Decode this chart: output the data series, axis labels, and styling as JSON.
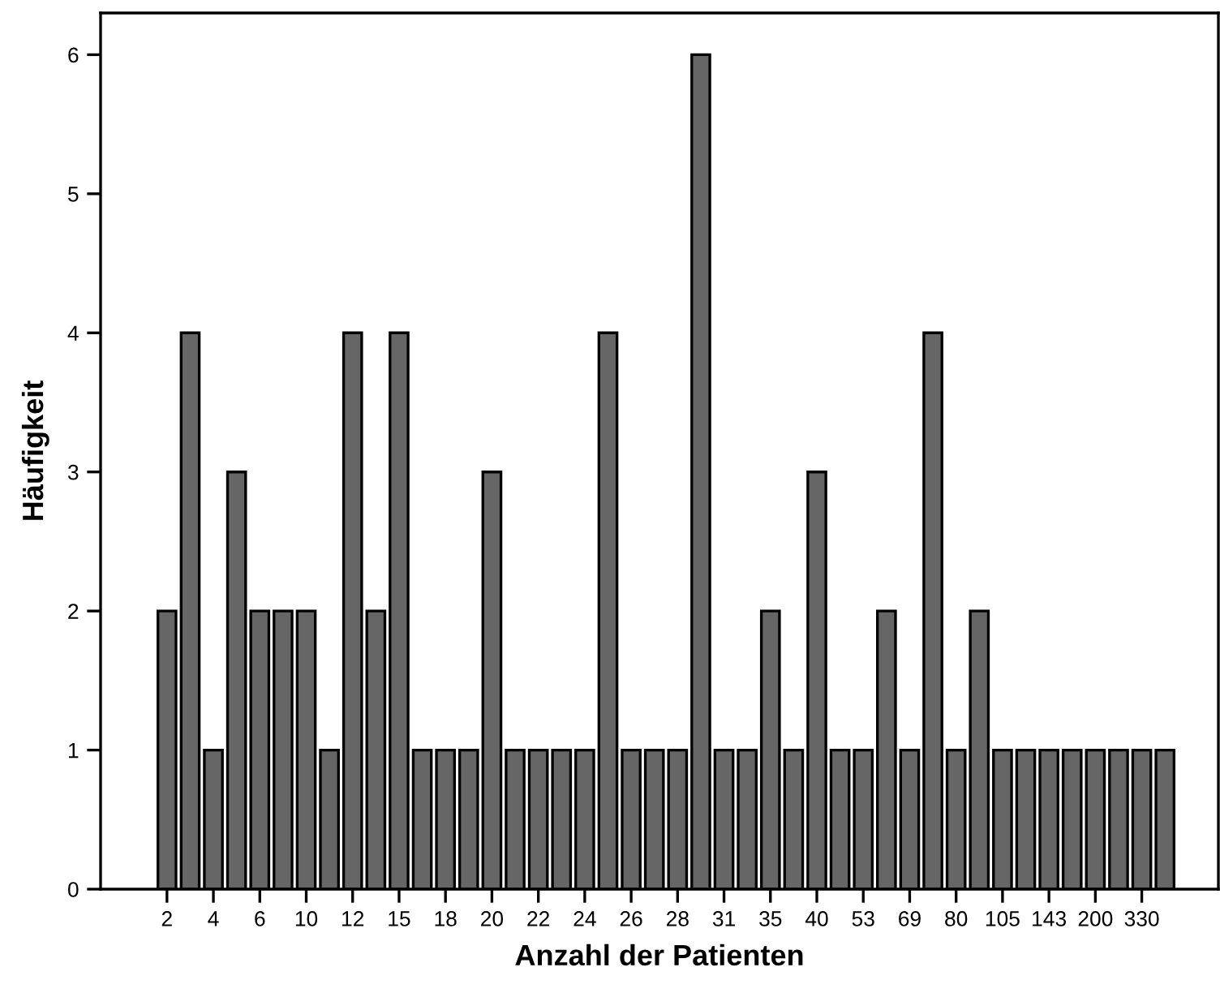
{
  "chart_data": {
    "type": "bar",
    "xlabel": "Anzahl der Patienten",
    "ylabel": "Häufigkeit",
    "categories": [
      "2",
      null,
      "4",
      null,
      "6",
      null,
      "10",
      null,
      "12",
      null,
      "15",
      null,
      "18",
      null,
      "20",
      null,
      "22",
      null,
      "24",
      null,
      "26",
      null,
      "28",
      null,
      "31",
      null,
      "35",
      null,
      "40",
      null,
      "53",
      null,
      "69",
      null,
      "80",
      null,
      "105",
      null,
      "143",
      null,
      "200",
      null,
      "330",
      null
    ],
    "values": [
      2,
      4,
      1,
      3,
      2,
      2,
      2,
      1,
      4,
      2,
      4,
      1,
      1,
      1,
      3,
      1,
      1,
      1,
      1,
      4,
      1,
      1,
      1,
      6,
      1,
      1,
      2,
      1,
      3,
      1,
      1,
      2,
      1,
      4,
      1,
      2,
      1,
      1,
      1,
      1,
      1,
      1,
      1,
      1
    ],
    "color": "#666666",
    "ylim": [
      0,
      6.3
    ],
    "yticks": [
      0,
      1,
      2,
      3,
      4,
      5,
      6
    ],
    "grid": false,
    "legend": false
  }
}
